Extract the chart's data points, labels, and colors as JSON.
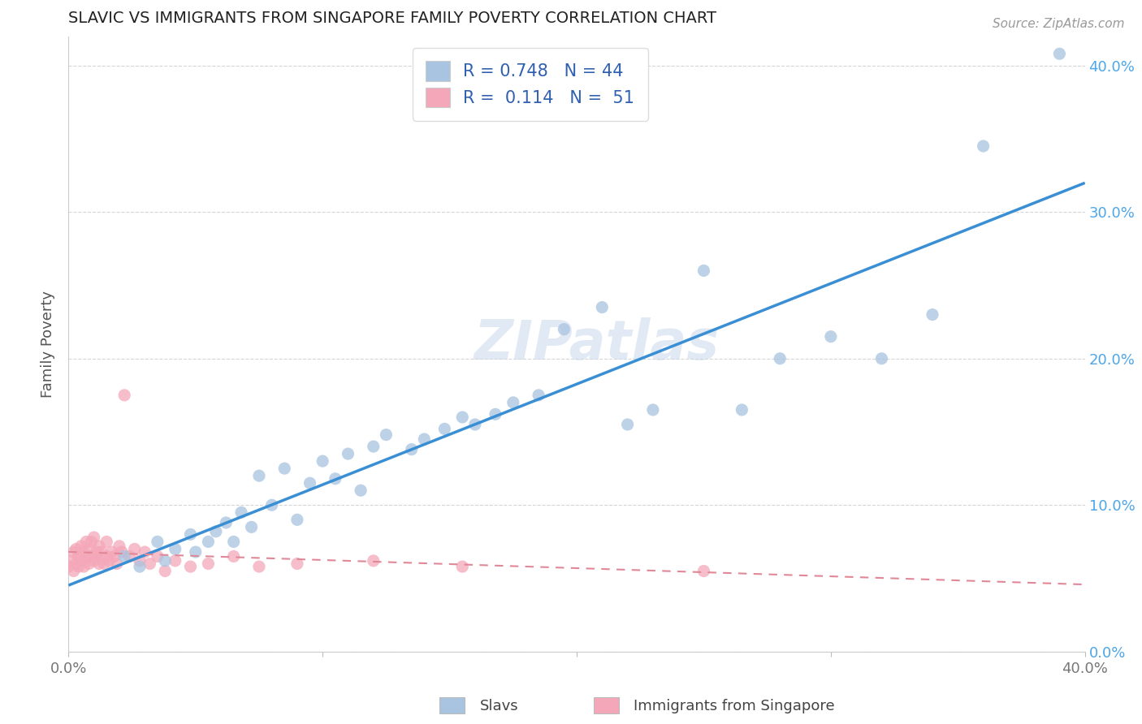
{
  "title": "SLAVIC VS IMMIGRANTS FROM SINGAPORE FAMILY POVERTY CORRELATION CHART",
  "source": "Source: ZipAtlas.com",
  "ylabel": "Family Poverty",
  "xlim": [
    0.0,
    0.4
  ],
  "ylim": [
    0.0,
    0.42
  ],
  "slavs_color": "#a8c4e0",
  "singapore_color": "#f4a7b9",
  "slavs_line_color": "#3a8fd4",
  "singapore_line_color": "#e08898",
  "legend_slavs_R": "0.748",
  "legend_slavs_N": "44",
  "legend_singapore_R": "0.114",
  "legend_singapore_N": "51",
  "watermark": "ZIPatlas",
  "legend_label_slavs": "Slavs",
  "legend_label_singapore": "Immigrants from Singapore",
  "bg_color": "#ffffff",
  "grid_color": "#cccccc",
  "title_color": "#222222",
  "axis_label_color": "#555555",
  "tick_label_color_right": "#4da6e8",
  "tick_label_color_bottom": "#777777",
  "slavs_scatter_x": [
    0.022,
    0.028,
    0.035,
    0.038,
    0.042,
    0.048,
    0.05,
    0.055,
    0.058,
    0.062,
    0.065,
    0.068,
    0.072,
    0.075,
    0.08,
    0.085,
    0.09,
    0.095,
    0.1,
    0.105,
    0.11,
    0.115,
    0.12,
    0.125,
    0.135,
    0.14,
    0.148,
    0.155,
    0.16,
    0.168,
    0.175,
    0.185,
    0.195,
    0.21,
    0.22,
    0.23,
    0.25,
    0.265,
    0.28,
    0.3,
    0.32,
    0.34,
    0.36,
    0.39
  ],
  "slavs_scatter_y": [
    0.065,
    0.058,
    0.075,
    0.062,
    0.07,
    0.08,
    0.068,
    0.075,
    0.082,
    0.088,
    0.075,
    0.095,
    0.085,
    0.12,
    0.1,
    0.125,
    0.09,
    0.115,
    0.13,
    0.118,
    0.135,
    0.11,
    0.14,
    0.148,
    0.138,
    0.145,
    0.152,
    0.16,
    0.155,
    0.162,
    0.17,
    0.175,
    0.22,
    0.235,
    0.155,
    0.165,
    0.26,
    0.165,
    0.2,
    0.215,
    0.2,
    0.23,
    0.345,
    0.408
  ],
  "singapore_scatter_x": [
    0.0,
    0.001,
    0.002,
    0.002,
    0.003,
    0.003,
    0.004,
    0.004,
    0.005,
    0.005,
    0.006,
    0.006,
    0.007,
    0.007,
    0.008,
    0.008,
    0.009,
    0.009,
    0.01,
    0.01,
    0.011,
    0.011,
    0.012,
    0.012,
    0.013,
    0.014,
    0.015,
    0.015,
    0.016,
    0.017,
    0.018,
    0.019,
    0.02,
    0.021,
    0.022,
    0.024,
    0.026,
    0.028,
    0.03,
    0.032,
    0.035,
    0.038,
    0.042,
    0.048,
    0.055,
    0.065,
    0.075,
    0.09,
    0.12,
    0.155,
    0.25
  ],
  "singapore_scatter_y": [
    0.058,
    0.062,
    0.068,
    0.055,
    0.06,
    0.07,
    0.058,
    0.065,
    0.062,
    0.072,
    0.058,
    0.068,
    0.064,
    0.075,
    0.06,
    0.07,
    0.065,
    0.075,
    0.062,
    0.078,
    0.065,
    0.068,
    0.06,
    0.072,
    0.068,
    0.06,
    0.065,
    0.075,
    0.062,
    0.068,
    0.065,
    0.06,
    0.072,
    0.068,
    0.175,
    0.065,
    0.07,
    0.062,
    0.068,
    0.06,
    0.065,
    0.055,
    0.062,
    0.058,
    0.06,
    0.065,
    0.058,
    0.06,
    0.062,
    0.058,
    0.055
  ]
}
